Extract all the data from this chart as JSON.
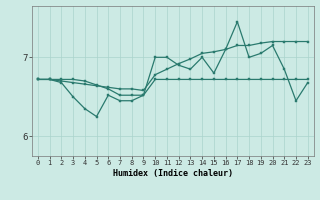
{
  "bg_color": "#cceae4",
  "line_color": "#2a7a6e",
  "grid_color": "#aad4cc",
  "xlabel": "Humidex (Indice chaleur)",
  "xlim": [
    -0.5,
    23.5
  ],
  "ylim": [
    5.75,
    7.65
  ],
  "yticks": [
    6,
    7
  ],
  "xticks": [
    0,
    1,
    2,
    3,
    4,
    5,
    6,
    7,
    8,
    9,
    10,
    11,
    12,
    13,
    14,
    15,
    16,
    17,
    18,
    19,
    20,
    21,
    22,
    23
  ],
  "series1": {
    "x": [
      0,
      1,
      2,
      3,
      4,
      5,
      6,
      7,
      8,
      9,
      10,
      11,
      12,
      13,
      14,
      15,
      16,
      17,
      18,
      19,
      20,
      21,
      22,
      23
    ],
    "y": [
      6.72,
      6.72,
      6.72,
      6.72,
      6.7,
      6.65,
      6.6,
      6.52,
      6.52,
      6.52,
      6.72,
      6.72,
      6.72,
      6.72,
      6.72,
      6.72,
      6.72,
      6.72,
      6.72,
      6.72,
      6.72,
      6.72,
      6.72,
      6.72
    ]
  },
  "series2": {
    "x": [
      0,
      1,
      2,
      3,
      4,
      5,
      6,
      7,
      8,
      9,
      10,
      11,
      12,
      13,
      14,
      15,
      16,
      17,
      18,
      19,
      20,
      21,
      22,
      23
    ],
    "y": [
      6.72,
      6.72,
      6.7,
      6.68,
      6.66,
      6.64,
      6.62,
      6.6,
      6.6,
      6.58,
      6.78,
      6.85,
      6.92,
      6.98,
      7.05,
      7.07,
      7.1,
      7.15,
      7.15,
      7.18,
      7.2,
      7.2,
      7.2,
      7.2
    ]
  },
  "series3": {
    "x": [
      0,
      1,
      2,
      3,
      4,
      5,
      6,
      7,
      8,
      9,
      10,
      11,
      12,
      13,
      14,
      15,
      16,
      17,
      18,
      19,
      20,
      21,
      22,
      23
    ],
    "y": [
      6.72,
      6.72,
      6.68,
      6.5,
      6.35,
      6.25,
      6.52,
      6.45,
      6.45,
      6.52,
      7.0,
      7.0,
      6.9,
      6.85,
      7.0,
      6.8,
      7.1,
      7.45,
      7.0,
      7.05,
      7.15,
      6.85,
      6.45,
      6.68
    ]
  }
}
